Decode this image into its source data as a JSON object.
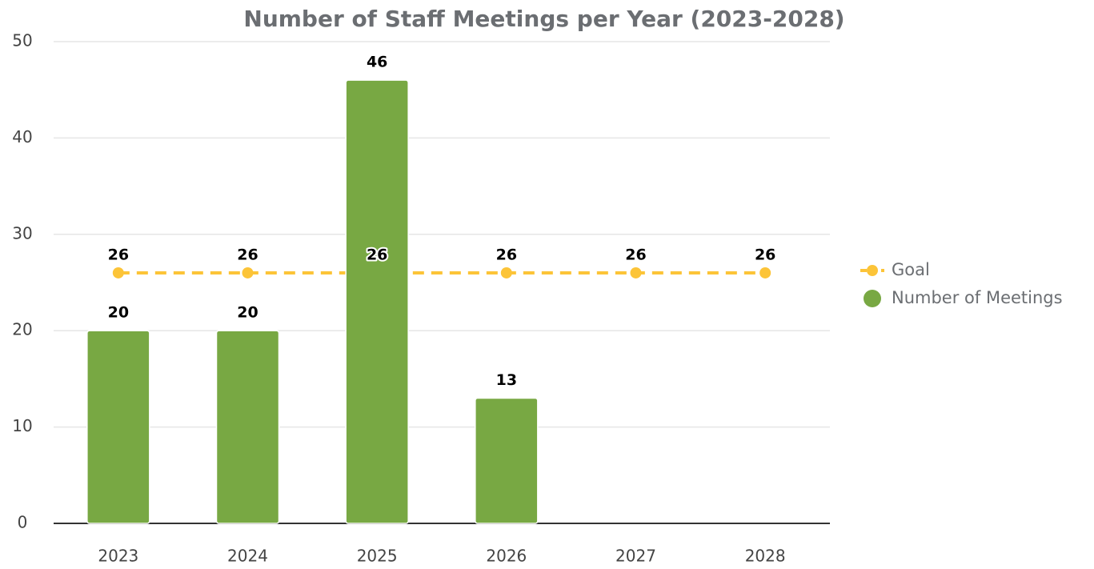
{
  "chart_data": {
    "type": "bar",
    "title": "Number of Staff Meetings per Year (2023-2028)",
    "categories": [
      "2023",
      "2024",
      "2025",
      "2026",
      "2027",
      "2028"
    ],
    "series": [
      {
        "name": "Goal",
        "type": "line",
        "color": "#fcc438",
        "values": [
          26,
          26,
          26,
          26,
          26,
          26
        ]
      },
      {
        "name": "Number of Meetings",
        "type": "bar",
        "color": "#78a843",
        "values": [
          20,
          20,
          46,
          13,
          null,
          null
        ]
      }
    ],
    "ylim": [
      0,
      50
    ],
    "yticks": [
      0,
      10,
      20,
      30,
      40,
      50
    ],
    "grid": true,
    "legend": "right"
  }
}
